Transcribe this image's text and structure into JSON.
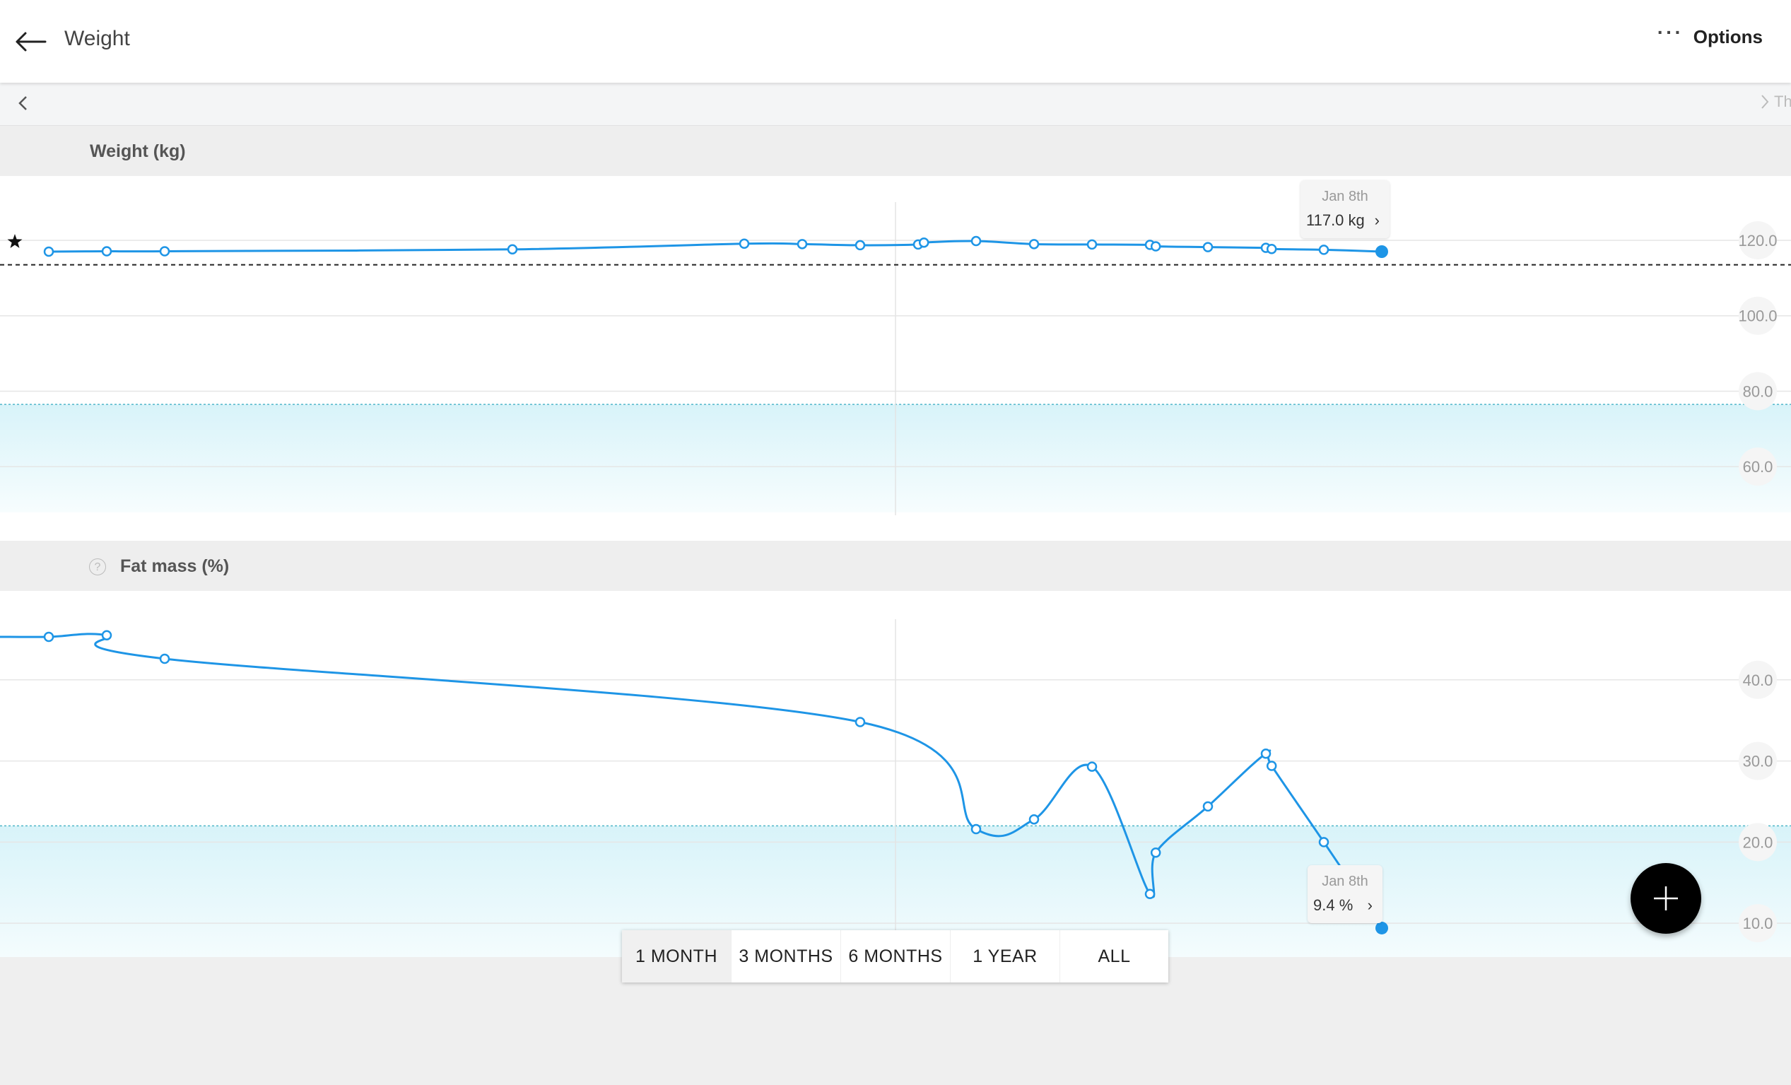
{
  "header": {
    "title": "Weight",
    "options_label": "Options",
    "options_dots": "···"
  },
  "nav": {
    "next_label": "Th"
  },
  "colors": {
    "line": "#1e95e6",
    "target_band": "#e3f7fb",
    "target_line": "#4fb6c9",
    "grid": "#e6e6e6",
    "text_axis": "#999999"
  },
  "weight": {
    "section_title": "Weight (kg)",
    "tooltip": {
      "date": "Jan 8th",
      "value": "117.0 kg"
    },
    "y_ticks": [
      "120.0",
      "100.0",
      "80.0",
      "60.0"
    ]
  },
  "fat": {
    "section_title": "Fat mass (%)",
    "help_icon": "?",
    "tooltip": {
      "date": "Jan 8th",
      "value": "9.4 %"
    },
    "y_ticks": [
      "40.0",
      "30.0",
      "20.0",
      "10.0"
    ]
  },
  "ranges": [
    {
      "label": "1 MONTH",
      "active": true
    },
    {
      "label": "3 MONTHS",
      "active": false
    },
    {
      "label": "6 MONTHS",
      "active": false
    },
    {
      "label": "1 YEAR",
      "active": false
    },
    {
      "label": "ALL",
      "active": false
    }
  ],
  "chart_data": [
    {
      "type": "line",
      "title": "Weight (kg)",
      "ylim": [
        52,
        128
      ],
      "y_ticks": [
        120,
        100,
        80,
        60
      ],
      "reference_line": 113.5,
      "target_range": [
        52,
        76.5
      ],
      "x": [
        0,
        1,
        2,
        8,
        12,
        13,
        14,
        15,
        15.1,
        16,
        17,
        18,
        19,
        19.1,
        20,
        21,
        21.1,
        22,
        23
      ],
      "values": [
        117.0,
        117.1,
        117.1,
        117.6,
        119.1,
        119.0,
        118.7,
        118.9,
        119.4,
        119.8,
        119.0,
        118.9,
        118.8,
        118.4,
        118.2,
        118.0,
        117.7,
        117.5,
        117.0
      ],
      "highlight": {
        "index": 18,
        "label": "Jan 8th"
      }
    },
    {
      "type": "line",
      "title": "Fat mass (%)",
      "ylim": [
        6,
        48
      ],
      "y_ticks": [
        40,
        30,
        20,
        10
      ],
      "target_range": [
        6,
        22
      ],
      "x": [
        0,
        1,
        2,
        14,
        16,
        17,
        18,
        19,
        19.1,
        20,
        21,
        21.1,
        22,
        23
      ],
      "values": [
        45.3,
        45.5,
        42.6,
        34.8,
        21.6,
        22.8,
        29.3,
        13.6,
        18.7,
        24.4,
        30.9,
        29.4,
        20.0,
        9.4
      ],
      "highlight": {
        "index": 13,
        "label": "Jan 8th"
      }
    }
  ]
}
